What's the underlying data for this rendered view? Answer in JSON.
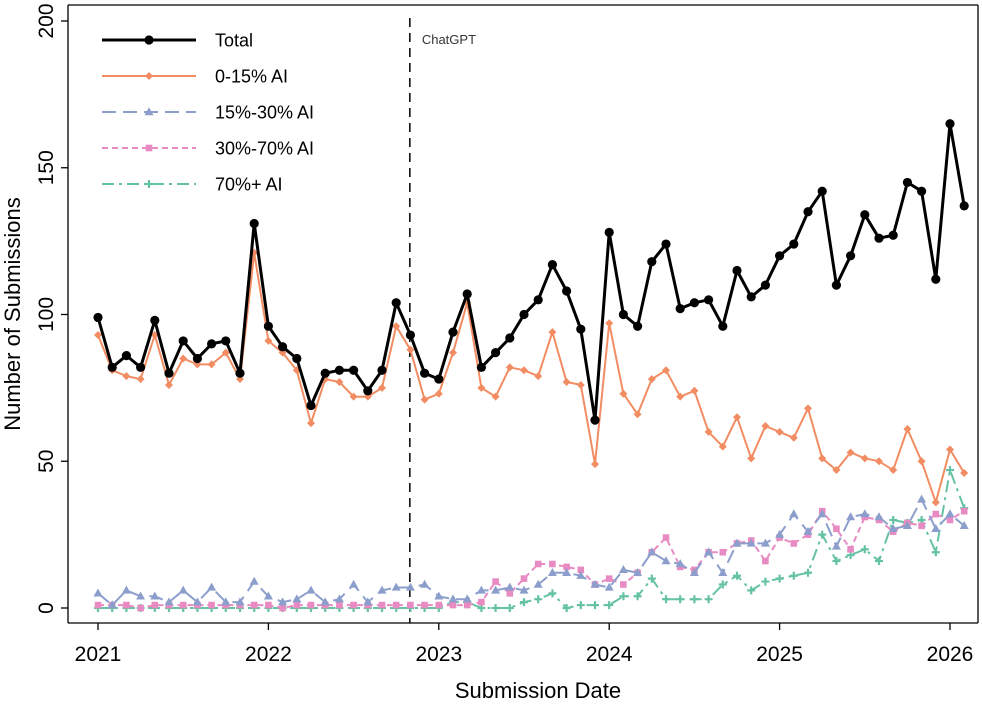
{
  "chart_data": {
    "type": "line",
    "xlabel": "Submission Date",
    "ylabel": "Number of Submissions",
    "xlim": [
      2021.0,
      2026.2
    ],
    "ylim": [
      -5,
      200
    ],
    "x_ticks": [
      2021,
      2022,
      2023,
      2024,
      2025,
      2026
    ],
    "y_ticks": [
      0,
      50,
      100,
      150,
      200
    ],
    "legend_position": "top-left",
    "grid": false,
    "annotation": {
      "text": "ChatGPT",
      "x": 2022.83
    },
    "start_year": 2021,
    "series": [
      {
        "name": "Total",
        "color": "#000000",
        "dash": "",
        "marker": "circle",
        "values": [
          99,
          82,
          86,
          82,
          98,
          80,
          91,
          85,
          90,
          91,
          80,
          131,
          96,
          89,
          85,
          69,
          80,
          81,
          81,
          74,
          81,
          104,
          93,
          80,
          78,
          94,
          107,
          82,
          87,
          92,
          100,
          105,
          117,
          108,
          95,
          64,
          128,
          100,
          96,
          118,
          124,
          102,
          104,
          105,
          96,
          115,
          106,
          110,
          120,
          124,
          135,
          142,
          110,
          120,
          134,
          126,
          127,
          145,
          142,
          112,
          165,
          137
        ]
      },
      {
        "name": "0-15% AI",
        "color": "#F28C62",
        "dash": "",
        "marker": "diamond",
        "values": [
          93,
          81,
          79,
          78,
          93,
          76,
          85,
          83,
          83,
          87,
          78,
          121,
          91,
          87,
          81,
          63,
          78,
          77,
          72,
          72,
          75,
          96,
          88,
          71,
          73,
          87,
          104,
          75,
          72,
          82,
          81,
          79,
          94,
          77,
          76,
          49,
          97,
          73,
          66,
          78,
          81,
          72,
          74,
          60,
          55,
          65,
          51,
          62,
          60,
          58,
          68,
          51,
          47,
          53,
          51,
          50,
          47,
          61,
          50,
          36,
          54,
          46
        ]
      },
      {
        "name": "15%-30% AI",
        "color": "#8C9ECB",
        "dash": "14 7",
        "marker": "triangle",
        "values": [
          5,
          1,
          6,
          4,
          4,
          2,
          6,
          2,
          7,
          2,
          2,
          9,
          4,
          2,
          3,
          6,
          2,
          3,
          8,
          2,
          6,
          7,
          7,
          8,
          4,
          3,
          3,
          6,
          6,
          7,
          6,
          8,
          12,
          12,
          11,
          8,
          7,
          13,
          12,
          19,
          16,
          15,
          12,
          19,
          12,
          22,
          22,
          22,
          25,
          32,
          26,
          32,
          21,
          31,
          32,
          31,
          27,
          28,
          37,
          27,
          32,
          28
        ]
      },
      {
        "name": "30%-70% AI",
        "color": "#E88BC3",
        "dash": "6 4",
        "marker": "square",
        "values": [
          1,
          1,
          1,
          0,
          1,
          1,
          1,
          1,
          1,
          1,
          1,
          1,
          1,
          0,
          1,
          1,
          1,
          1,
          1,
          1,
          1,
          1,
          1,
          1,
          1,
          1,
          1,
          2,
          9,
          5,
          10,
          15,
          15,
          14,
          13,
          8,
          10,
          8,
          12,
          19,
          24,
          14,
          13,
          19,
          19,
          22,
          23,
          16,
          24,
          22,
          25,
          33,
          27,
          20,
          31,
          30,
          26,
          29,
          28,
          32,
          30,
          33
        ]
      },
      {
        "name": "70%+ AI",
        "color": "#66C2A5",
        "dash": "12 5 3 5",
        "marker": "plus",
        "values": [
          0,
          0,
          0,
          0,
          0,
          0,
          0,
          0,
          0,
          0,
          0,
          0,
          0,
          0,
          0,
          0,
          0,
          0,
          0,
          0,
          0,
          0,
          0,
          0,
          0,
          2,
          2,
          0,
          0,
          0,
          2,
          3,
          5,
          0,
          1,
          1,
          1,
          4,
          4,
          10,
          3,
          3,
          3,
          3,
          8,
          11,
          6,
          9,
          10,
          11,
          12,
          25,
          16,
          18,
          20,
          16,
          30,
          29,
          30,
          19,
          47,
          34
        ]
      }
    ]
  }
}
